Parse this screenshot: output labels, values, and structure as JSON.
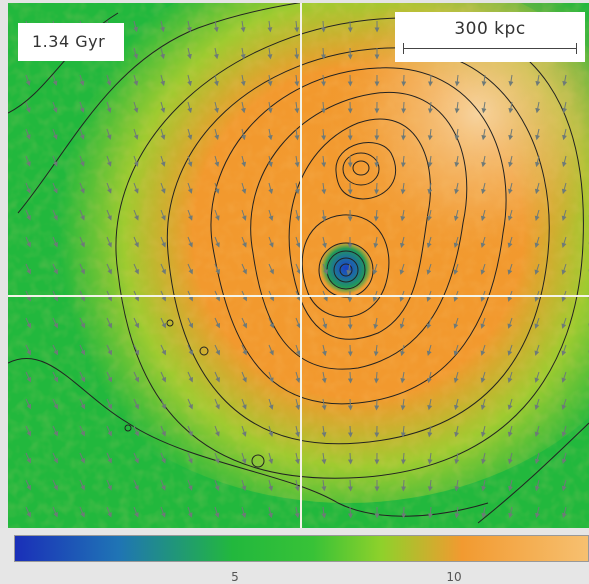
{
  "time_label": "1.34 Gyr",
  "scale_bar_label": "300 kpc",
  "colorbar": {
    "ticks": [
      "5",
      "10"
    ],
    "colors": [
      "#1a2fb8",
      "#1f74b5",
      "#22b83d",
      "#38c237",
      "#8fd12b",
      "#f29a30",
      "#f6c070"
    ]
  },
  "colors": {
    "background_green": "#22b83d",
    "hot_orange": "#f29a30",
    "core_blue": "#1a3fc8",
    "contours": "#222222",
    "vectors": "#6e7a78",
    "crosshair": "#f4f4e8"
  }
}
